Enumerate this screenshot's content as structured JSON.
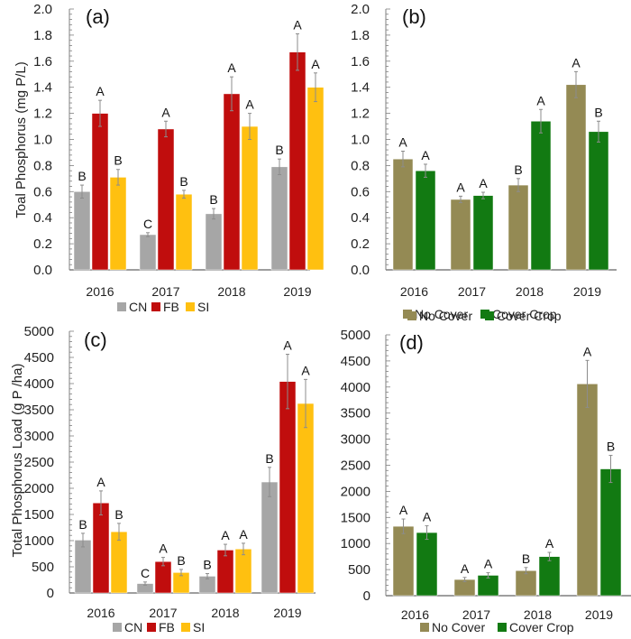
{
  "chart_data": [
    {
      "id": "a",
      "type": "bar",
      "panel_label": "(a)",
      "title": "",
      "xlabel": "",
      "ylabel": "Toal Phosphorus (mg P/L)",
      "ylim": [
        0,
        2.0
      ],
      "yticks": [
        "0.0",
        "0.2",
        "0.4",
        "0.6",
        "0.8",
        "1.0",
        "1.2",
        "1.4",
        "1.6",
        "1.8",
        "2.0"
      ],
      "ytick_values": [
        0,
        0.2,
        0.4,
        0.6,
        0.8,
        1.0,
        1.2,
        1.4,
        1.6,
        1.8,
        2.0
      ],
      "categories": [
        "2016",
        "2017",
        "2018",
        "2019"
      ],
      "legend": {
        "placement": "bottom",
        "entries": [
          "CN",
          "FB",
          "SI"
        ]
      },
      "series": [
        {
          "name": "CN",
          "color": "#a6a6a6",
          "values": [
            0.6,
            0.27,
            0.43,
            0.79
          ],
          "errors": [
            0.05,
            0.015,
            0.04,
            0.06
          ],
          "letters": [
            "B",
            "C",
            "B",
            "B"
          ]
        },
        {
          "name": "FB",
          "color": "#c00d0d",
          "values": [
            1.2,
            1.08,
            1.35,
            1.67
          ],
          "errors": [
            0.1,
            0.06,
            0.13,
            0.14
          ],
          "letters": [
            "A",
            "A",
            "A",
            "A"
          ]
        },
        {
          "name": "SI",
          "color": "#ffc010",
          "values": [
            0.71,
            0.58,
            1.1,
            1.4
          ],
          "errors": [
            0.06,
            0.03,
            0.1,
            0.11
          ],
          "letters": [
            "B",
            "B",
            "A",
            "A"
          ]
        }
      ]
    },
    {
      "id": "b",
      "type": "bar",
      "panel_label": "(b)",
      "title": "",
      "xlabel": "",
      "ylabel": "",
      "ylim": [
        0,
        2.0
      ],
      "yticks": [
        "0.0",
        "0.2",
        "0.4",
        "0.6",
        "0.8",
        "1.0",
        "1.2",
        "1.4",
        "1.6",
        "1.8",
        "2.0"
      ],
      "ytick_values": [
        0,
        0.2,
        0.4,
        0.6,
        0.8,
        1.0,
        1.2,
        1.4,
        1.6,
        1.8,
        2.0
      ],
      "categories": [
        "2016",
        "2017",
        "2018",
        "2019"
      ],
      "legend": {
        "placement": "bottom",
        "entries": [
          "No Cover",
          "Cover Crop"
        ]
      },
      "series": [
        {
          "name": "No Cover",
          "color": "#948a54",
          "values": [
            0.85,
            0.54,
            0.65,
            1.42
          ],
          "errors": [
            0.06,
            0.025,
            0.05,
            0.1
          ],
          "letters": [
            "A",
            "A",
            "B",
            "A"
          ]
        },
        {
          "name": "Cover Crop",
          "color": "#127a12",
          "values": [
            0.76,
            0.57,
            1.14,
            1.06
          ],
          "errors": [
            0.05,
            0.025,
            0.09,
            0.08
          ],
          "letters": [
            "A",
            "A",
            "A",
            "B"
          ]
        }
      ]
    },
    {
      "id": "c",
      "type": "bar",
      "panel_label": "(c)",
      "title": "",
      "xlabel": "",
      "ylabel": "Total Phosphorus Load (g P /ha)",
      "ylim": [
        0,
        5000
      ],
      "yticks": [
        "0",
        "500",
        "1000",
        "1500",
        "2000",
        "2500",
        "3000",
        "3500",
        "4000",
        "4500",
        "5000"
      ],
      "ytick_values": [
        0,
        500,
        1000,
        1500,
        2000,
        2500,
        3000,
        3500,
        4000,
        4500,
        5000
      ],
      "categories": [
        "2016",
        "2017",
        "2018",
        "2019"
      ],
      "legend": {
        "placement": "bottom",
        "entries": [
          "CN",
          "FB",
          "SI"
        ]
      },
      "series": [
        {
          "name": "CN",
          "color": "#a6a6a6",
          "values": [
            1010,
            180,
            320,
            2120
          ],
          "errors": [
            130,
            30,
            50,
            280
          ],
          "letters": [
            "B",
            "C",
            "B",
            "B"
          ]
        },
        {
          "name": "FB",
          "color": "#c00d0d",
          "values": [
            1720,
            600,
            820,
            4040
          ],
          "errors": [
            230,
            80,
            110,
            520
          ],
          "letters": [
            "A",
            "A",
            "A",
            "A"
          ]
        },
        {
          "name": "SI",
          "color": "#ffc010",
          "values": [
            1170,
            390,
            840,
            3620
          ],
          "errors": [
            160,
            60,
            110,
            460
          ],
          "letters": [
            "B",
            "B",
            "A",
            "A"
          ]
        }
      ]
    },
    {
      "id": "d",
      "type": "bar",
      "panel_label": "(d)",
      "title": "",
      "xlabel": "",
      "ylabel": "",
      "ylim": [
        0,
        5000
      ],
      "yticks": [
        "0",
        "500",
        "1000",
        "1500",
        "2000",
        "2500",
        "3000",
        "3500",
        "4000",
        "4500",
        "5000"
      ],
      "ytick_values": [
        0,
        500,
        1000,
        1500,
        2000,
        2500,
        3000,
        3500,
        4000,
        4500,
        5000
      ],
      "categories": [
        "2016",
        "2017",
        "2018",
        "2019"
      ],
      "legend": {
        "placement": "top-and-bottom",
        "entries": [
          "No Cover",
          "Cover Crop"
        ]
      },
      "series": [
        {
          "name": "No Cover",
          "color": "#948a54",
          "values": [
            1330,
            310,
            480,
            4060
          ],
          "errors": [
            140,
            40,
            60,
            450
          ],
          "letters": [
            "A",
            "A",
            "B",
            "A"
          ]
        },
        {
          "name": "Cover Crop",
          "color": "#127a12",
          "values": [
            1210,
            390,
            750,
            2430
          ],
          "errors": [
            130,
            50,
            80,
            260
          ],
          "letters": [
            "A",
            "A",
            "A",
            "B"
          ]
        }
      ]
    }
  ],
  "style": {
    "axis_color": "#7f7f7f",
    "error_bar_color": "#8c8c8c",
    "text_color": "#222222"
  }
}
